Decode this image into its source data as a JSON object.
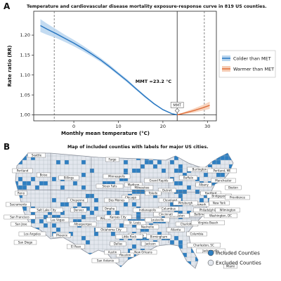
{
  "panel_a": {
    "label": "A",
    "title": "Temperature and cardiovascular disease mortality exposure-response curve in 819 US counties."
  },
  "panel_b": {
    "label": "B",
    "title": "Map of included counties with labels for major US cities.",
    "legend": [
      "Included Counties",
      "Excluded Counties"
    ],
    "colors": {
      "included": "#2f7fc1",
      "excluded": "#e3e7ee",
      "border": "#8a8f99"
    },
    "cities": [
      "Seattle",
      "Portland",
      "Boise",
      "Billings",
      "Fargo",
      "Minneapolis",
      "Sioux Falls",
      "Madison",
      "Milwaukee",
      "Grand Rapids",
      "Detroit",
      "Buffalo",
      "Burlington",
      "Portland, ME",
      "Manchester",
      "Boston",
      "Hartford",
      "Albany",
      "Bridgeport",
      "Providence",
      "New York",
      "Newark",
      "Philadelphia",
      "Wilmington",
      "Baltimore",
      "Washington, DC",
      "Toledo",
      "Cleveland",
      "Pittsburgh",
      "Columbus",
      "Charleston",
      "Cincinnati",
      "Indianapolis",
      "Chicago",
      "Des Moines",
      "Omaha",
      "Cheyenne",
      "Denver",
      "Salt Lake City",
      "Reno",
      "Sacramento",
      "San Francisco",
      "San Jose",
      "Las Vegas",
      "Los Angeles",
      "San Diego",
      "Phoenix",
      "Albuquerque",
      "Oklahoma City",
      "Wichita",
      "Kansas City",
      "St. Louis",
      "Louisville",
      "Nashville",
      "Memphis",
      "Little Rock",
      "Charlotte",
      "Virginia Beach",
      "Jackson",
      "Birmingham",
      "Atlanta",
      "Columbia",
      "Charleston, SC",
      "Jacksonville",
      "New Orleans",
      "Houston",
      "Austin",
      "San Antonio",
      "Dallas",
      "El Paso",
      "Miami"
    ]
  },
  "chart_data": {
    "type": "line",
    "title": "Temperature and cardiovascular disease mortality exposure-response curve in 819 US counties.",
    "xlabel": "Monthly mean temperature (°C)",
    "ylabel": "Rate ratio (RR)",
    "xlim": [
      -9,
      32
    ],
    "ylim": [
      0.985,
      1.26
    ],
    "xticks": [
      0,
      10,
      20,
      30
    ],
    "yticks": [
      1.0,
      1.05,
      1.1,
      1.15,
      1.2
    ],
    "ytick_labels": [
      "1.00",
      "1.05",
      "1.10",
      "1.15",
      "1.20"
    ],
    "reference_line": 1.0,
    "percentile_lines_x": [
      -4.4,
      29.3
    ],
    "mmt": {
      "x": 23.2,
      "label": "MMT =23.2 °C",
      "marker_label": "MMT"
    },
    "legend": {
      "placement": "right",
      "entries": [
        "Colder than MET",
        "Warmer than MET"
      ]
    },
    "series": [
      {
        "name": "Colder than MET",
        "color": "#2a78c2",
        "band_color": "#b9d5ee",
        "x": [
          -7.5,
          -6,
          -4,
          -2,
          0,
          2,
          4,
          6,
          8,
          10,
          12,
          14,
          16,
          18,
          20,
          22,
          23.2
        ],
        "y": [
          1.224,
          1.215,
          1.204,
          1.192,
          1.18,
          1.167,
          1.153,
          1.138,
          1.121,
          1.103,
          1.085,
          1.065,
          1.046,
          1.028,
          1.013,
          1.003,
          1.0
        ],
        "ci_low": [
          1.208,
          1.201,
          1.193,
          1.183,
          1.172,
          1.16,
          1.147,
          1.133,
          1.117,
          1.099,
          1.081,
          1.062,
          1.043,
          1.026,
          1.012,
          1.002,
          1.0
        ],
        "ci_high": [
          1.24,
          1.229,
          1.215,
          1.201,
          1.188,
          1.174,
          1.159,
          1.143,
          1.126,
          1.107,
          1.089,
          1.068,
          1.049,
          1.03,
          1.014,
          1.004,
          1.0
        ]
      },
      {
        "name": "Warmer than MET",
        "color": "#e0703c",
        "band_color": "#f6ccb4",
        "x": [
          23.2,
          25,
          27,
          29,
          30.5
        ],
        "y": [
          1.0,
          1.005,
          1.011,
          1.018,
          1.024
        ],
        "ci_low": [
          1.0,
          1.002,
          1.006,
          1.011,
          1.015
        ],
        "ci_high": [
          1.0,
          1.008,
          1.016,
          1.025,
          1.033
        ]
      }
    ]
  }
}
